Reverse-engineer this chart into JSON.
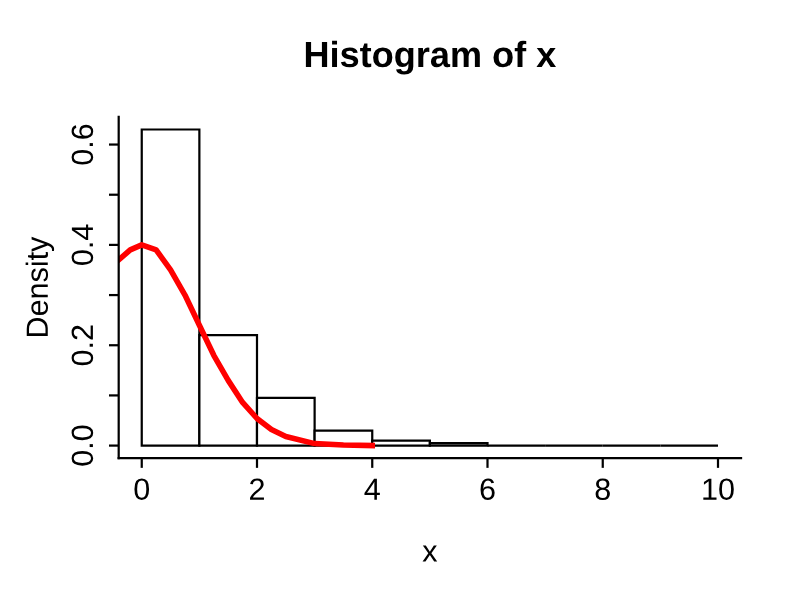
{
  "chart_data": {
    "type": "histogram",
    "title": "Histogram of x",
    "xlabel": "x",
    "ylabel": "Density",
    "bins": [
      0,
      1,
      2,
      3,
      4,
      5,
      6,
      7,
      8,
      9,
      10
    ],
    "values": [
      0.63,
      0.22,
      0.095,
      0.03,
      0.01,
      0.005,
      0,
      0,
      0,
      0
    ],
    "colors": [
      "#ffffff",
      "#ffffff",
      "#ffffff",
      "#ffffff",
      "#ffffff",
      "#ffffff",
      "#000000",
      "#000000",
      "#000000",
      "#000000"
    ],
    "series": [
      {
        "type": "line",
        "color": "#ff0000",
        "x": [
          -0.4,
          -0.2,
          0,
          0.25,
          0.5,
          0.75,
          1,
          1.25,
          1.5,
          1.75,
          2,
          2.25,
          2.5,
          3,
          3.5,
          4
        ],
        "values": [
          0.37,
          0.39,
          0.4,
          0.39,
          0.35,
          0.3,
          0.24,
          0.18,
          0.13,
          0.086,
          0.054,
          0.032,
          0.018,
          0.004,
          0.001,
          0
        ]
      }
    ],
    "xlim": [
      -0.4,
      10.4
    ],
    "ylim": [
      -0.025,
      0.655
    ],
    "xticks": [
      0,
      2,
      4,
      6,
      8,
      10
    ],
    "yticks": [
      {
        "value": 0,
        "label": "0.0"
      },
      {
        "value": 0.1,
        "label": null
      },
      0.2,
      {
        "value": 0.3,
        "label": null
      },
      0.4,
      {
        "value": 0.5,
        "label": null
      },
      0.6
    ],
    "grid": false,
    "legend": false
  }
}
